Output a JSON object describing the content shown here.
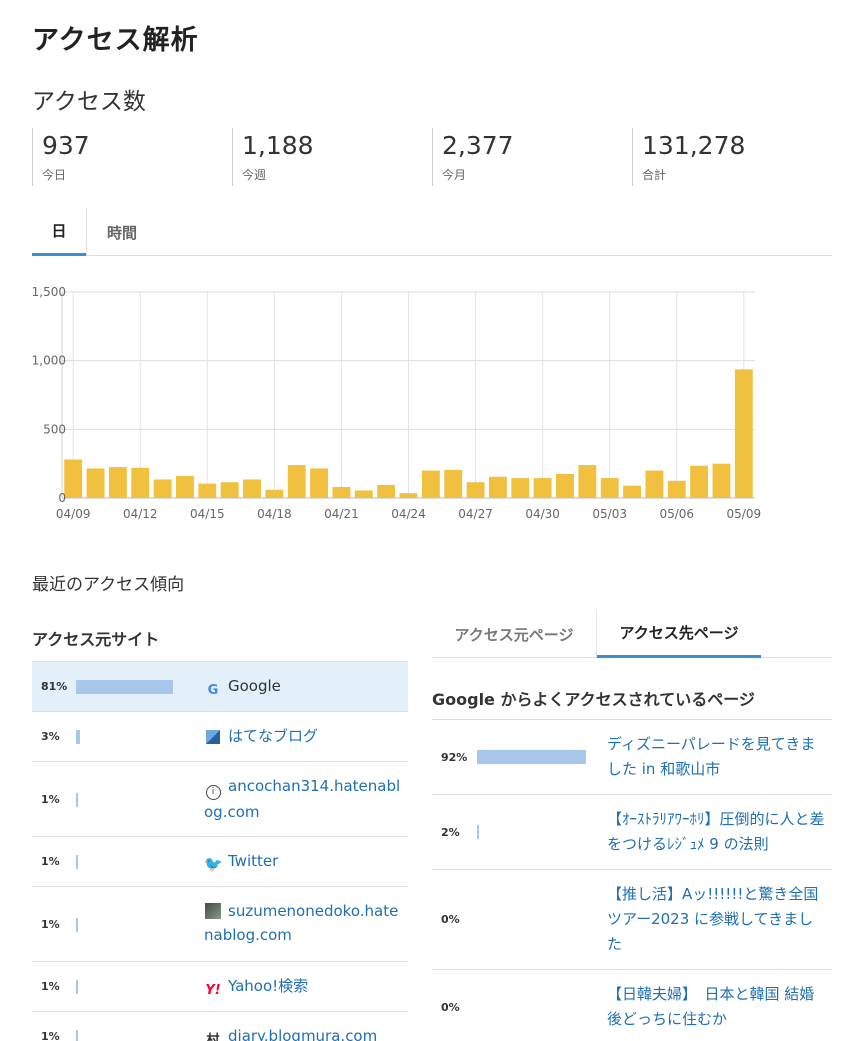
{
  "title": "アクセス解析",
  "access_heading": "アクセス数",
  "stats": [
    {
      "value": "937",
      "label": "今日"
    },
    {
      "value": "1,188",
      "label": "今週"
    },
    {
      "value": "2,377",
      "label": "今月"
    },
    {
      "value": "131,278",
      "label": "合計"
    }
  ],
  "tabs": [
    {
      "label": "日",
      "active": true
    },
    {
      "label": "時間",
      "active": false
    }
  ],
  "chart_data": {
    "type": "bar",
    "categories": [
      "04/09",
      "04/10",
      "04/11",
      "04/12",
      "04/13",
      "04/14",
      "04/15",
      "04/16",
      "04/17",
      "04/18",
      "04/19",
      "04/20",
      "04/21",
      "04/22",
      "04/23",
      "04/24",
      "04/25",
      "04/26",
      "04/27",
      "04/28",
      "04/29",
      "04/30",
      "05/01",
      "05/02",
      "05/03",
      "05/04",
      "05/05",
      "05/06",
      "05/07",
      "05/08",
      "05/09"
    ],
    "values": [
      280,
      215,
      225,
      220,
      135,
      160,
      105,
      115,
      135,
      60,
      240,
      215,
      80,
      55,
      95,
      35,
      200,
      205,
      115,
      155,
      145,
      145,
      175,
      240,
      145,
      90,
      200,
      125,
      235,
      250,
      937
    ],
    "x_tick_labels": [
      "04/09",
      "04/12",
      "04/15",
      "04/18",
      "04/21",
      "04/24",
      "04/27",
      "04/30",
      "05/03",
      "05/06",
      "05/09"
    ],
    "y_tick_labels": [
      "0",
      "500",
      "1,000",
      "1,500"
    ],
    "ylim": [
      0,
      1500
    ],
    "bar_color": "#f0c03e",
    "grid": true
  },
  "trend_heading": "最近のアクセス傾向",
  "sources": {
    "heading": "アクセス元サイト",
    "items": [
      {
        "pct": "81%",
        "fraction": 0.81,
        "name": "Google",
        "icon": "google-icon"
      },
      {
        "pct": "3%",
        "fraction": 0.03,
        "name": "はてなブログ",
        "icon": "hatena-icon"
      },
      {
        "pct": "1%",
        "fraction": 0.01,
        "name": "ancochan314.hatenablog.com",
        "icon": "site-icon"
      },
      {
        "pct": "1%",
        "fraction": 0.01,
        "name": "Twitter",
        "icon": "twitter-icon"
      },
      {
        "pct": "1%",
        "fraction": 0.01,
        "name": "suzumenonedoko.hatenablog.com",
        "icon": "blog-thumb-icon"
      },
      {
        "pct": "1%",
        "fraction": 0.01,
        "name": "Yahoo!検索",
        "icon": "yahoo-icon"
      },
      {
        "pct": "1%",
        "fraction": 0.01,
        "name": "diary.blogmura.com",
        "icon": "blogmura-icon"
      }
    ]
  },
  "page_tabs": [
    {
      "label": "アクセス元ページ",
      "active": false
    },
    {
      "label": "アクセス先ページ",
      "active": true
    }
  ],
  "pages": {
    "heading": "Google からよくアクセスされているページ",
    "items": [
      {
        "pct": "92%",
        "fraction": 0.92,
        "title": "ディズニーパレードを見てきました in 和歌山市"
      },
      {
        "pct": "2%",
        "fraction": 0.02,
        "title": "【ｵｰｽﾄﾗﾘｱﾜｰﾎﾘ】圧倒的に人と差をつけるﾚｼﾞｭﾒ 9 の法則"
      },
      {
        "pct": "0%",
        "fraction": 0.0,
        "title": "【推し活】Aッ!!!!!!と驚き全国ツアー2023 に参戦してきました"
      },
      {
        "pct": "0%",
        "fraction": 0.0,
        "title": "【日韓夫婦】　日本と韓国 結婚後どっちに住むか"
      }
    ]
  },
  "colors": {
    "accent": "#3a8fd0",
    "link": "#1f6fb2",
    "bar": "#f0c03e",
    "pct_bar": "#a7c8ea",
    "highlight_row": "#e3f0fa"
  }
}
